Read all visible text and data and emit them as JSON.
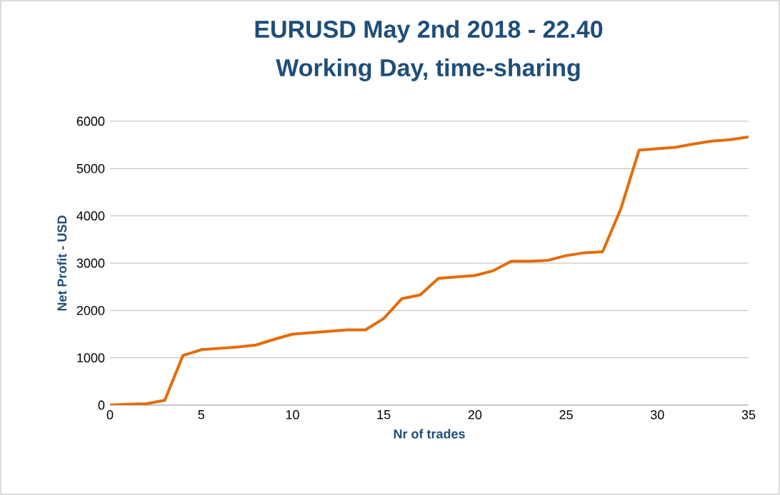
{
  "chart_data": {
    "type": "line",
    "title": "EURUSD  May 2nd 2018 - 22.40",
    "subtitle": "Working Day, time-sharing",
    "xlabel": "Nr of trades",
    "ylabel": "Net Profit - USD",
    "x": [
      0,
      1,
      2,
      3,
      4,
      5,
      6,
      7,
      8,
      9,
      10,
      11,
      12,
      13,
      14,
      15,
      16,
      17,
      18,
      19,
      20,
      21,
      22,
      23,
      24,
      25,
      26,
      27,
      28,
      29,
      30,
      31,
      32,
      33,
      34,
      35
    ],
    "series": [
      {
        "color": "#e46c0a",
        "values": [
          0,
          20,
          30,
          100,
          1050,
          1170,
          1200,
          1230,
          1270,
          1390,
          1500,
          1530,
          1560,
          1590,
          1590,
          1830,
          2250,
          2330,
          2680,
          2710,
          2740,
          2840,
          3040,
          3040,
          3060,
          3160,
          3220,
          3240,
          4150,
          5390,
          5420,
          5450,
          5520,
          5580,
          5610,
          5670
        ]
      }
    ],
    "xlim": [
      0,
      35
    ],
    "ylim": [
      0,
      6000
    ],
    "xticks": [
      0,
      5,
      10,
      15,
      20,
      25,
      30,
      35
    ],
    "yticks": [
      0,
      1000,
      2000,
      3000,
      4000,
      5000,
      6000
    ],
    "grid": "y",
    "marker": "none",
    "line_style": "solid"
  }
}
